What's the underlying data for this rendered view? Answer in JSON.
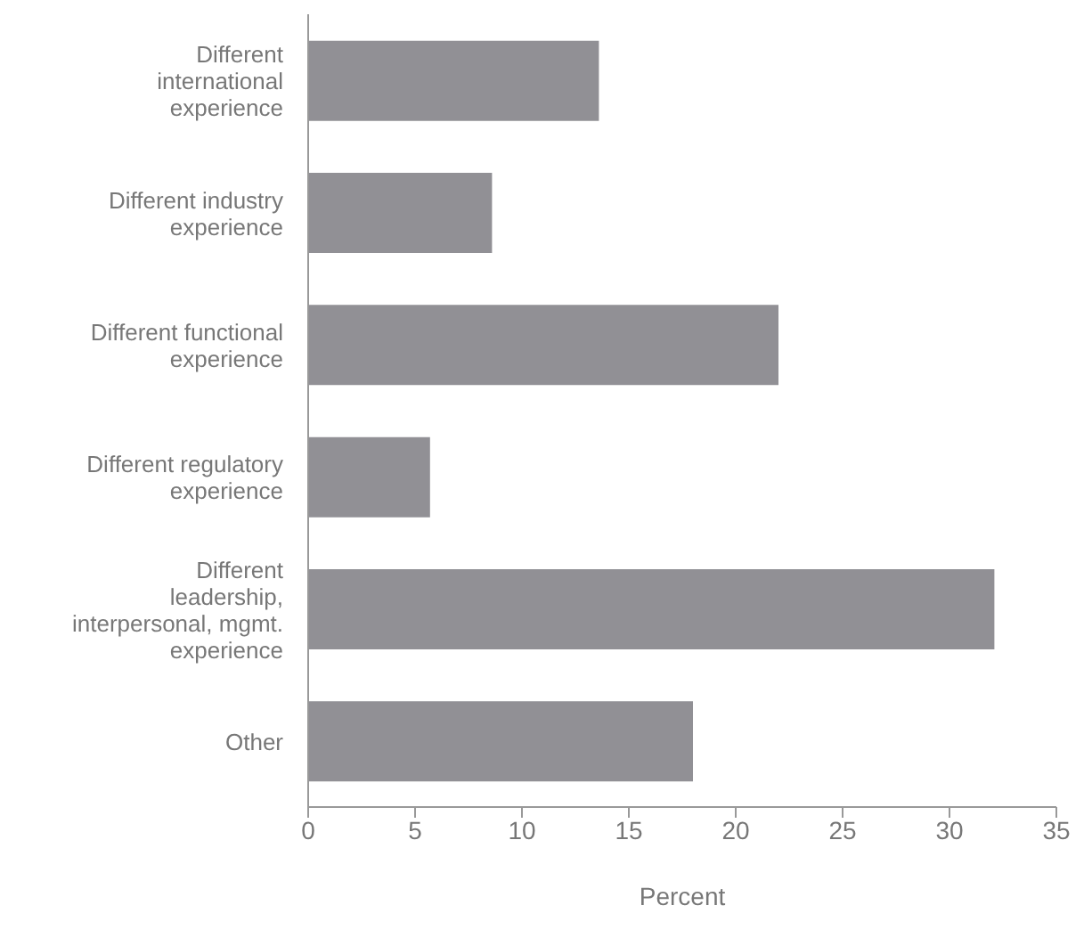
{
  "chart_data": {
    "type": "bar",
    "orientation": "horizontal",
    "xlabel": "Percent",
    "categories": [
      "Different international experience",
      "Different industry experience",
      "Different functional experience",
      "Different regulatory experience",
      "Different leadership, interpersonal, mgmt. experience",
      "Other"
    ],
    "values": [
      13.6,
      8.6,
      22.0,
      5.7,
      32.1,
      18.0
    ],
    "color": "#919095",
    "xlim": [
      0,
      35
    ],
    "xticks": [
      0,
      5,
      10,
      15,
      20,
      25,
      30,
      35
    ],
    "grid": false,
    "legend": false
  }
}
